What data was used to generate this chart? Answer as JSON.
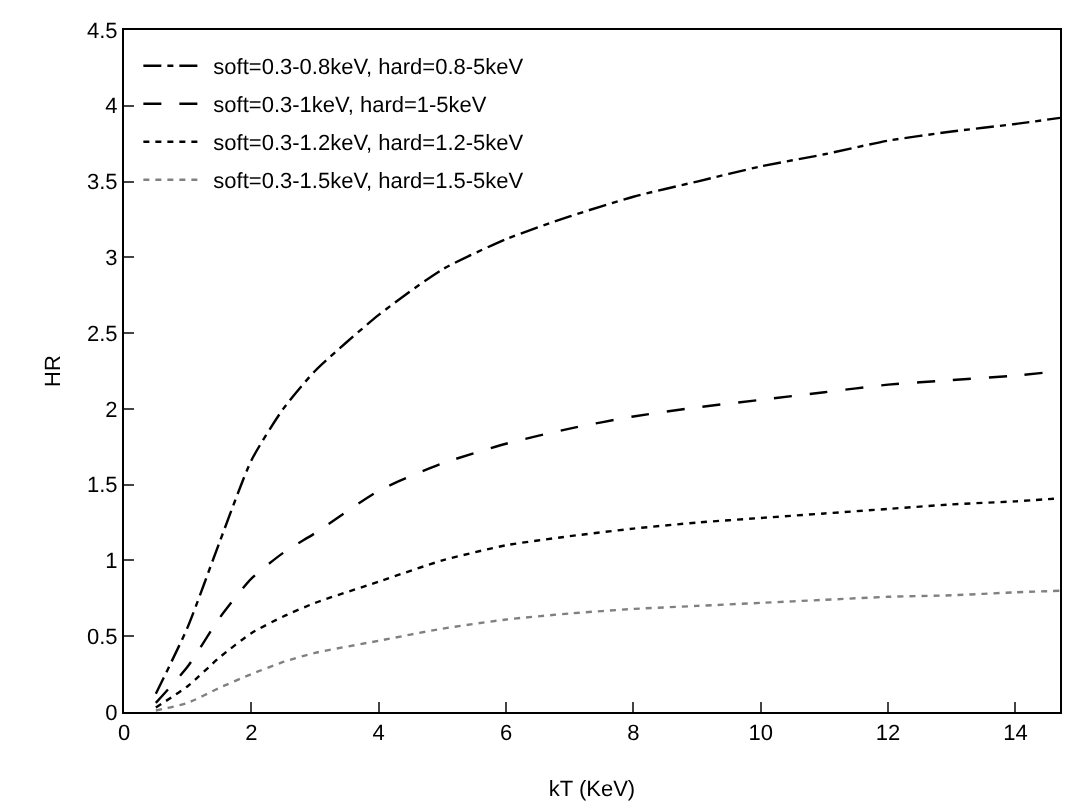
{
  "chart_data": {
    "type": "line",
    "xlabel": "kT (KeV)",
    "ylabel": "HR",
    "xlim": [
      0,
      14.7
    ],
    "ylim": [
      0,
      4.5
    ],
    "xticks": [
      0,
      2,
      4,
      6,
      8,
      10,
      12,
      14
    ],
    "yticks": [
      0,
      0.5,
      1,
      1.5,
      2,
      2.5,
      3,
      3.5,
      4,
      4.5
    ],
    "grid": false,
    "legend": "top left",
    "marker": "none",
    "x": [
      0.5,
      1,
      1.5,
      2,
      2.5,
      3,
      4,
      5,
      6,
      7,
      8,
      9,
      10,
      11,
      12,
      13,
      14,
      14.7
    ],
    "series": [
      {
        "name": "soft=0.3-0.8keV, hard=0.8-5keV",
        "color": "#000000",
        "line_style": "dashdot",
        "values": [
          0.12,
          0.56,
          1.12,
          1.66,
          2.0,
          2.25,
          2.62,
          2.92,
          3.12,
          3.27,
          3.4,
          3.5,
          3.6,
          3.68,
          3.77,
          3.83,
          3.88,
          3.92
        ]
      },
      {
        "name": "soft=0.3-1keV, hard=1-5keV",
        "color": "#000000",
        "line_style": "dashed",
        "values": [
          0.06,
          0.3,
          0.62,
          0.88,
          1.05,
          1.18,
          1.46,
          1.64,
          1.77,
          1.87,
          1.95,
          2.01,
          2.06,
          2.11,
          2.16,
          2.19,
          2.22,
          2.25
        ]
      },
      {
        "name": "soft=0.3-1.2keV, hard=1.2-5keV",
        "color": "#000000",
        "line_style": "dotted",
        "values": [
          0.03,
          0.17,
          0.36,
          0.52,
          0.63,
          0.72,
          0.86,
          1.0,
          1.1,
          1.16,
          1.21,
          1.25,
          1.28,
          1.31,
          1.34,
          1.37,
          1.39,
          1.41
        ]
      },
      {
        "name": "soft=0.3-1.5keV, hard=1.5-5keV",
        "color": "#808080",
        "line_style": "dotted",
        "values": [
          0.01,
          0.06,
          0.16,
          0.25,
          0.33,
          0.39,
          0.47,
          0.55,
          0.61,
          0.65,
          0.68,
          0.7,
          0.72,
          0.74,
          0.76,
          0.77,
          0.79,
          0.8
        ]
      }
    ]
  }
}
